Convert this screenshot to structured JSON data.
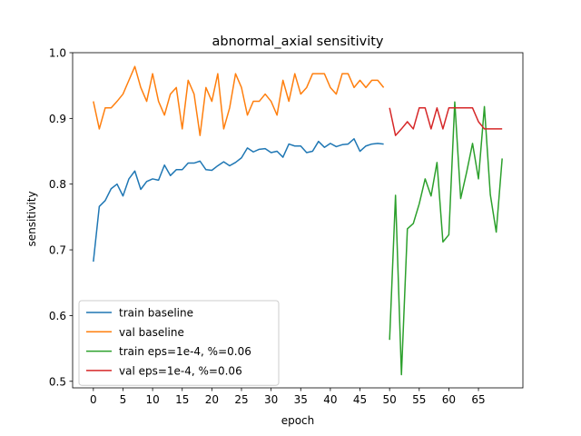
{
  "chart_data": {
    "type": "line",
    "title": "abnormal_axial sensitivity",
    "xlabel": "epoch",
    "ylabel": "sensitivity",
    "xlim": [
      -3.5,
      72.5
    ],
    "ylim": [
      0.49,
      1.0
    ],
    "xticks": [
      0,
      5,
      10,
      15,
      20,
      25,
      30,
      35,
      40,
      45,
      50,
      55,
      60,
      65
    ],
    "yticks": [
      0.5,
      0.6,
      0.7,
      0.8,
      0.9,
      1.0
    ],
    "ytick_labels": [
      "0.5",
      "0.6",
      "0.7",
      "0.8",
      "0.9",
      "1.0"
    ],
    "grid": false,
    "legend_position": "lower-left",
    "series": [
      {
        "name": "train baseline",
        "color": "#1f77b4",
        "x": [
          0,
          1,
          2,
          3,
          4,
          5,
          6,
          7,
          8,
          9,
          10,
          11,
          12,
          13,
          14,
          15,
          16,
          17,
          18,
          19,
          20,
          21,
          22,
          23,
          24,
          25,
          26,
          27,
          28,
          29,
          30,
          31,
          32,
          33,
          34,
          35,
          36,
          37,
          38,
          39,
          40,
          41,
          42,
          43,
          44,
          45,
          46,
          47,
          48,
          49
        ],
        "values": [
          0.682,
          0.766,
          0.775,
          0.793,
          0.8,
          0.782,
          0.808,
          0.82,
          0.792,
          0.804,
          0.808,
          0.806,
          0.829,
          0.813,
          0.822,
          0.822,
          0.832,
          0.832,
          0.835,
          0.822,
          0.821,
          0.828,
          0.834,
          0.828,
          0.833,
          0.84,
          0.855,
          0.849,
          0.853,
          0.854,
          0.848,
          0.85,
          0.841,
          0.861,
          0.858,
          0.858,
          0.848,
          0.85,
          0.865,
          0.856,
          0.862,
          0.857,
          0.86,
          0.861,
          0.869,
          0.85,
          0.858,
          0.861,
          0.862,
          0.861
        ]
      },
      {
        "name": "val baseline",
        "color": "#ff7f0e",
        "x": [
          0,
          1,
          2,
          3,
          4,
          5,
          6,
          7,
          8,
          9,
          10,
          11,
          12,
          13,
          14,
          15,
          16,
          17,
          18,
          19,
          20,
          21,
          22,
          23,
          24,
          25,
          26,
          27,
          28,
          29,
          30,
          31,
          32,
          33,
          34,
          35,
          36,
          37,
          38,
          39,
          40,
          41,
          42,
          43,
          44,
          45,
          46,
          47,
          48,
          49
        ],
        "values": [
          0.926,
          0.884,
          0.916,
          0.916,
          0.926,
          0.937,
          0.958,
          0.979,
          0.947,
          0.926,
          0.968,
          0.926,
          0.905,
          0.937,
          0.947,
          0.884,
          0.958,
          0.937,
          0.874,
          0.947,
          0.926,
          0.968,
          0.884,
          0.916,
          0.968,
          0.947,
          0.905,
          0.926,
          0.926,
          0.937,
          0.926,
          0.905,
          0.958,
          0.926,
          0.968,
          0.937,
          0.947,
          0.968,
          0.968,
          0.968,
          0.947,
          0.937,
          0.968,
          0.968,
          0.947,
          0.958,
          0.947,
          0.958,
          0.958,
          0.947
        ]
      },
      {
        "name": "train eps=1e-4, %=0.06",
        "color": "#2ca02c",
        "x": [
          50,
          51,
          52,
          53,
          54,
          55,
          56,
          57,
          58,
          59,
          60,
          61,
          62,
          63,
          64,
          65,
          66,
          67,
          68,
          69
        ],
        "values": [
          0.563,
          0.783,
          0.51,
          0.732,
          0.74,
          0.77,
          0.808,
          0.782,
          0.833,
          0.712,
          0.723,
          0.925,
          0.778,
          0.818,
          0.862,
          0.808,
          0.918,
          0.784,
          0.727,
          0.839
        ]
      },
      {
        "name": "val eps=1e-4, %=0.06",
        "color": "#d62728",
        "x": [
          50,
          51,
          52,
          53,
          54,
          55,
          56,
          57,
          58,
          59,
          60,
          61,
          62,
          63,
          64,
          65,
          66,
          67,
          68,
          69
        ],
        "values": [
          0.916,
          0.874,
          0.884,
          0.895,
          0.884,
          0.916,
          0.916,
          0.884,
          0.916,
          0.884,
          0.916,
          0.916,
          0.916,
          0.916,
          0.916,
          0.895,
          0.884,
          0.884,
          0.884,
          0.884
        ]
      }
    ]
  }
}
